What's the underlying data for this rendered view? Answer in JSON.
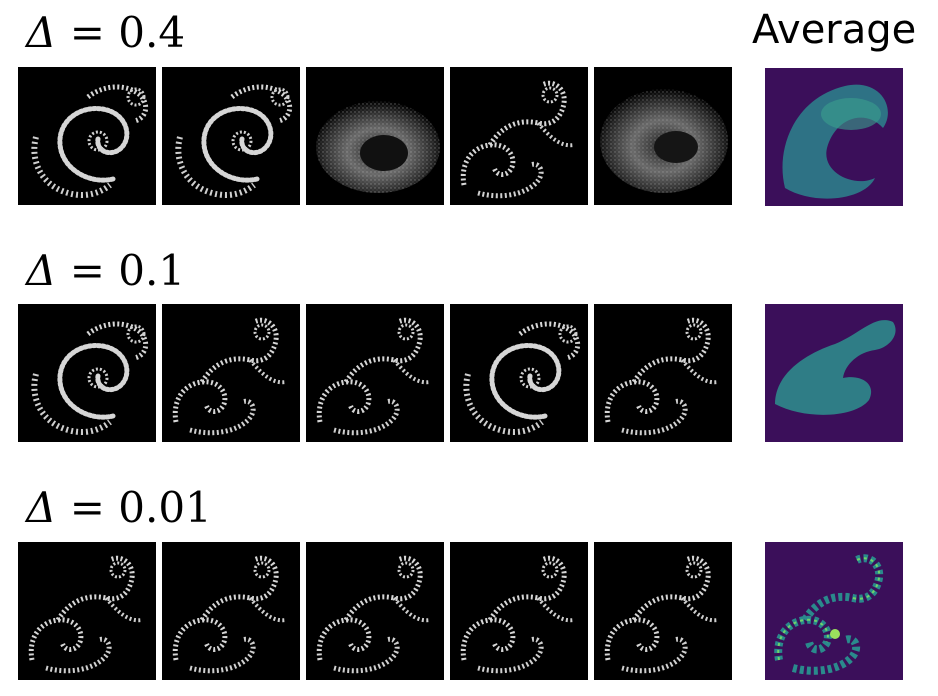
{
  "title_average": "Average",
  "rows": [
    {
      "delta_symbol": "Δ",
      "equals": "=",
      "delta_value": "0.4",
      "samples": [
        "fractal-sample-1",
        "fractal-sample-2",
        "fractal-sample-3",
        "fractal-sample-4",
        "fractal-sample-5"
      ]
    },
    {
      "delta_symbol": "Δ",
      "equals": "=",
      "delta_value": "0.1",
      "samples": [
        "fractal-sample-1",
        "fractal-sample-2",
        "fractal-sample-3",
        "fractal-sample-4",
        "fractal-sample-5"
      ]
    },
    {
      "delta_symbol": "Δ",
      "equals": "=",
      "delta_value": "0.01",
      "samples": [
        "fractal-sample-1",
        "fractal-sample-2",
        "fractal-sample-3",
        "fractal-sample-4",
        "fractal-sample-5"
      ]
    }
  ],
  "colors": {
    "tile_background": "#000000",
    "fractal_stroke": "#d8d8d8",
    "average_background": "#3b0f5a",
    "average_fill_teal": "#2a8a8c",
    "average_fill_bright": "#6fd46a"
  }
}
